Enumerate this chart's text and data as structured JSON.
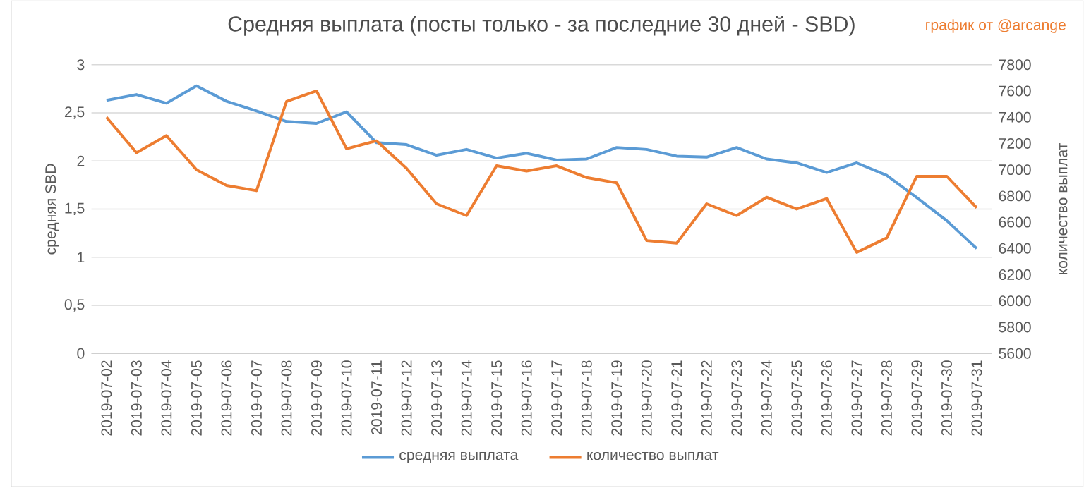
{
  "chart_data": {
    "type": "line",
    "title": "Средняя выплата (посты только - за последние 30 дней - SBD)",
    "ylabel": "средняя SBD",
    "y2label": "количество выплат",
    "annotations": [
      "график от @arcange"
    ],
    "categories": [
      "2019-07-02",
      "2019-07-03",
      "2019-07-04",
      "2019-07-05",
      "2019-07-06",
      "2019-07-07",
      "2019-07-08",
      "2019-07-09",
      "2019-07-10",
      "2019-07-11",
      "2019-07-12",
      "2019-07-13",
      "2019-07-14",
      "2019-07-15",
      "2019-07-16",
      "2019-07-17",
      "2019-07-18",
      "2019-07-19",
      "2019-07-20",
      "2019-07-21",
      "2019-07-22",
      "2019-07-23",
      "2019-07-24",
      "2019-07-25",
      "2019-07-26",
      "2019-07-27",
      "2019-07-28",
      "2019-07-29",
      "2019-07-30",
      "2019-07-31"
    ],
    "series": [
      {
        "name": "средняя выплата",
        "color": "#5b9bd5",
        "values": [
          2.63,
          2.69,
          2.6,
          2.78,
          2.62,
          2.52,
          2.41,
          2.39,
          2.51,
          2.19,
          2.17,
          2.06,
          2.12,
          2.03,
          2.08,
          2.01,
          2.02,
          2.14,
          2.12,
          2.05,
          2.04,
          2.14,
          2.02,
          1.98,
          1.88,
          1.98,
          1.85,
          1.62,
          1.38,
          1.09
        ]
      },
      {
        "name": "количество выплат",
        "color": "#ed7d31",
        "axis": "y2",
        "values": [
          7400,
          7130,
          7260,
          7000,
          6880,
          6840,
          7520,
          7600,
          7160,
          7220,
          7010,
          6740,
          6650,
          7030,
          6990,
          7030,
          6940,
          6900,
          6460,
          6440,
          6740,
          6650,
          6790,
          6700,
          6780,
          6370,
          6480,
          6950,
          6950,
          6710
        ]
      }
    ],
    "ylim": [
      0,
      3
    ],
    "yticks": [
      0,
      {
        "value": 0.5,
        "label": "0,5"
      },
      1,
      {
        "value": 1.5,
        "label": "1,5"
      },
      2,
      {
        "value": 2.5,
        "label": "2,5"
      },
      3
    ],
    "y2lim": [
      5600,
      7800
    ],
    "y2ticks": [
      5600,
      5800,
      6000,
      6200,
      6400,
      6600,
      6800,
      7000,
      7200,
      7400,
      7600,
      7800
    ],
    "grid": "y",
    "legend": "bottom"
  }
}
